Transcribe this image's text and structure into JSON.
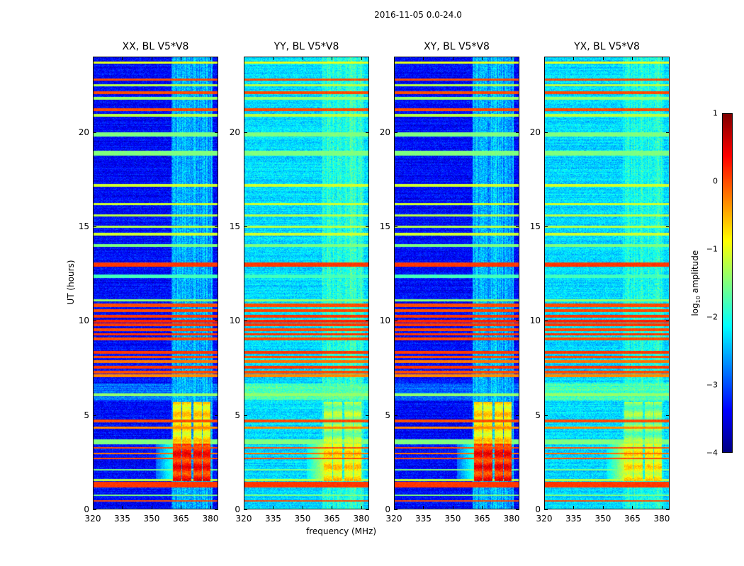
{
  "chart_data": {
    "type": "heatmap",
    "title": "2016-11-05 0.0-24.0",
    "xlabel": "frequency (MHz)",
    "ylabel": "UT (hours)",
    "xlim": [
      320,
      384
    ],
    "ylim": [
      0,
      24
    ],
    "xticks": [
      "320",
      "335",
      "350",
      "365",
      "380"
    ],
    "xtick_values": [
      320,
      335,
      350,
      365,
      380
    ],
    "yticks": [
      "0",
      "5",
      "10",
      "15",
      "20"
    ],
    "ytick_values": [
      0,
      5,
      10,
      15,
      20
    ],
    "colorbar": {
      "label_prefix": "log",
      "label_sub": "10",
      "label_suffix": " amplitude",
      "range": [
        -4,
        1
      ],
      "ticks": [
        "1",
        "0",
        "−1",
        "−2",
        "−3",
        "−4"
      ],
      "tick_values": [
        1,
        0,
        -1,
        -2,
        -3,
        -4
      ],
      "colormap": "jet"
    },
    "rfi_bands_hours": [
      [
        23.65,
        23.75,
        -1.0
      ],
      [
        22.75,
        22.85,
        0.0
      ],
      [
        22.45,
        22.55,
        -1.2
      ],
      [
        22.05,
        22.15,
        0.0
      ],
      [
        21.75,
        21.85,
        -1.4
      ],
      [
        21.15,
        21.25,
        0.0
      ],
      [
        20.85,
        20.95,
        -1.2
      ],
      [
        19.8,
        20.0,
        -1.5
      ],
      [
        18.8,
        19.0,
        -1.5
      ],
      [
        17.15,
        17.25,
        -1.1
      ],
      [
        16.15,
        16.25,
        -1.1
      ],
      [
        15.55,
        15.65,
        -1.2
      ],
      [
        14.95,
        15.05,
        -1.2
      ],
      [
        14.55,
        14.65,
        -1.1
      ],
      [
        13.95,
        14.05,
        -1.5
      ],
      [
        12.9,
        13.1,
        0.1
      ],
      [
        12.3,
        12.45,
        -1.8
      ],
      [
        11.05,
        11.15,
        -1.4
      ],
      [
        10.75,
        10.9,
        0.0
      ],
      [
        10.5,
        10.6,
        0.0
      ],
      [
        10.2,
        10.3,
        0.1
      ],
      [
        9.95,
        10.05,
        0.2
      ],
      [
        9.75,
        9.85,
        0.1
      ],
      [
        9.5,
        9.6,
        0.0
      ],
      [
        9.25,
        9.35,
        0.1
      ],
      [
        9.0,
        9.1,
        0.0
      ],
      [
        8.3,
        8.4,
        0.1
      ],
      [
        8.05,
        8.15,
        0.0
      ],
      [
        7.8,
        7.9,
        -0.2
      ],
      [
        7.5,
        7.6,
        0.1
      ],
      [
        7.25,
        7.35,
        0.0
      ],
      [
        7.05,
        7.15,
        -0.3
      ],
      [
        6.05,
        6.15,
        -1.4
      ],
      [
        4.65,
        4.75,
        0.0
      ],
      [
        4.3,
        4.38,
        -0.3
      ],
      [
        3.5,
        3.7,
        -1.5
      ],
      [
        3.25,
        3.3,
        0.0
      ],
      [
        2.95,
        3.0,
        -0.2
      ],
      [
        2.7,
        2.75,
        0.0
      ],
      [
        2.1,
        2.15,
        -1.5
      ],
      [
        1.55,
        1.6,
        -1.2
      ],
      [
        1.2,
        1.45,
        0.1
      ],
      [
        0.75,
        0.8,
        -1.5
      ],
      [
        0.45,
        0.5,
        0.0
      ]
    ],
    "panels": [
      {
        "title": "XX, BL V5*V8",
        "background": -3.35,
        "noise": 0.35,
        "band_offset": 0.0,
        "vertical_level": -2.5,
        "block_level": 0.2,
        "block_top_level": -0.8,
        "lowband_level": -2.9
      },
      {
        "title": "YY, BL V5*V8",
        "background": -2.3,
        "noise": 0.35,
        "band_offset": 0.0,
        "vertical_level": -2.0,
        "block_level": -0.8,
        "block_top_level": -1.4,
        "lowband_level": -2.2
      },
      {
        "title": "XY, BL V5*V8",
        "background": -3.35,
        "noise": 0.35,
        "band_offset": 0.0,
        "vertical_level": -2.5,
        "block_level": 0.2,
        "block_top_level": -0.8,
        "lowband_level": -2.9
      },
      {
        "title": "YX, BL V5*V8",
        "background": -2.3,
        "noise": 0.35,
        "band_offset": 0.0,
        "vertical_level": -2.1,
        "block_level": -0.9,
        "block_top_level": -1.5,
        "lowband_level": -2.2
      }
    ],
    "block_channels_mhz": [
      [
        360.5,
        365.0
      ],
      [
        365.5,
        370.2
      ],
      [
        371.0,
        375.6
      ],
      [
        376.0,
        380.0
      ]
    ],
    "block_hours": [
      1.5,
      5.7
    ]
  }
}
